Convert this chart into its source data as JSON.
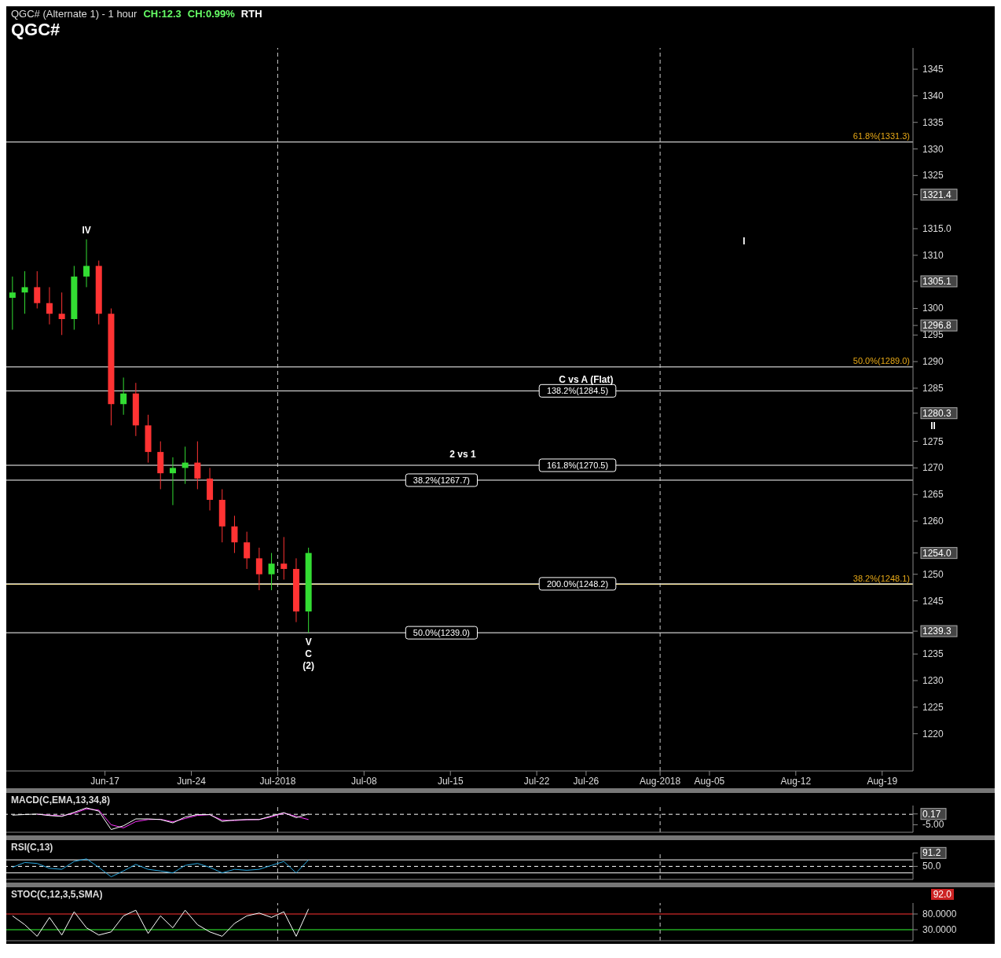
{
  "chart_data": [
    {
      "type": "candlestick",
      "title": "QGC#",
      "subtitle": "QGC# (Alternate 1) - 1 hour",
      "annotations": [
        "CH:12.3",
        "CH:0.99%",
        "RTH",
        "I",
        "II",
        {
          "text": "IV",
          "x": "2018-06-15T12:00",
          "y": 1313
        },
        {
          "text": "V",
          "x": "2018-07-03T12:00",
          "y": 1239
        },
        {
          "text": "C",
          "x": "2018-07-03T12:00",
          "y": 1239
        },
        {
          "text": "(2)",
          "x": "2018-07-03T12:00",
          "y": 1239
        },
        {
          "text": "C vs A (Flat)",
          "x": "2018-07-26T00:00",
          "y": 1284.5
        },
        {
          "text": "2 vs 1",
          "x": "2018-07-16T00:00",
          "y": 1270.5
        }
      ],
      "x": [
        "2018-06-09T12:00",
        "2018-06-10T12:00",
        "2018-06-11T12:00",
        "2018-06-12T12:00",
        "2018-06-13T12:00",
        "2018-06-14T12:00",
        "2018-06-15T12:00",
        "2018-06-16T12:00",
        "2018-06-17T12:00",
        "2018-06-18T12:00",
        "2018-06-19T12:00",
        "2018-06-20T12:00",
        "2018-06-21T12:00",
        "2018-06-22T12:00",
        "2018-06-23T12:00",
        "2018-06-24T12:00",
        "2018-06-25T12:00",
        "2018-06-26T12:00",
        "2018-06-27T12:00",
        "2018-06-28T12:00",
        "2018-06-29T12:00",
        "2018-06-30T12:00",
        "2018-07-01T12:00",
        "2018-07-02T12:00",
        "2018-07-03T12:00"
      ],
      "ohlc": [
        [
          1302,
          1306,
          1296,
          1303
        ],
        [
          1303,
          1307,
          1299,
          1304
        ],
        [
          1304,
          1307,
          1300,
          1301
        ],
        [
          1301,
          1304,
          1297,
          1299
        ],
        [
          1299,
          1303,
          1295,
          1298
        ],
        [
          1298,
          1308,
          1296,
          1306
        ],
        [
          1306,
          1313,
          1304,
          1308
        ],
        [
          1308,
          1309,
          1297,
          1299
        ],
        [
          1299,
          1300,
          1278,
          1282
        ],
        [
          1282,
          1287,
          1280,
          1284
        ],
        [
          1284,
          1286,
          1276,
          1278
        ],
        [
          1278,
          1280,
          1271,
          1273
        ],
        [
          1273,
          1275,
          1266,
          1269
        ],
        [
          1269,
          1272,
          1263,
          1270
        ],
        [
          1270,
          1274,
          1267,
          1271
        ],
        [
          1271,
          1275,
          1266,
          1268
        ],
        [
          1268,
          1270,
          1262,
          1264
        ],
        [
          1264,
          1266,
          1256,
          1259
        ],
        [
          1259,
          1261,
          1254,
          1256
        ],
        [
          1256,
          1258,
          1251,
          1253
        ],
        [
          1253,
          1255,
          1247,
          1250
        ],
        [
          1250,
          1254,
          1247,
          1252
        ],
        [
          1252,
          1257,
          1249,
          1251
        ],
        [
          1251,
          1253,
          1241,
          1243
        ],
        [
          1243,
          1255,
          1239,
          1254
        ]
      ],
      "colors": [
        "#33dd33",
        "#33dd33",
        "#ff3333",
        "#ff3333",
        "#ff3333",
        "#33dd33",
        "#33dd33",
        "#ff3333",
        "#ff3333",
        "#33dd33",
        "#ff3333",
        "#ff3333",
        "#ff3333",
        "#33dd33",
        "#33dd33",
        "#ff3333",
        "#ff3333",
        "#ff3333",
        "#ff3333",
        "#ff3333",
        "#ff3333",
        "#33dd33",
        "#ff3333",
        "#ff3333",
        "#33dd33"
      ],
      "xlim": [
        "2018-06-09T00:00",
        "2018-08-21T12:00"
      ],
      "xticks": [
        {
          "value": "2018-06-17",
          "label": "Jun-17"
        },
        {
          "value": "2018-06-24",
          "label": "Jun-24"
        },
        {
          "value": "2018-07-01",
          "label": "Jul-2018"
        },
        {
          "value": "2018-07-08",
          "label": "Jul-08"
        },
        {
          "value": "2018-07-15",
          "label": "Jul-15"
        },
        {
          "value": "2018-07-22",
          "label": "Jul-22"
        },
        {
          "value": "2018-07-26",
          "label": "Jul-26"
        },
        {
          "value": "2018-08-01",
          "label": "Aug-2018"
        },
        {
          "value": "2018-08-05",
          "label": "Aug-05"
        },
        {
          "value": "2018-08-12",
          "label": "Aug-12"
        },
        {
          "value": "2018-08-19",
          "label": "Aug-19"
        }
      ],
      "ylim": [
        1213,
        1349
      ],
      "yticks": [
        1220,
        1225,
        1230,
        1235,
        1245,
        1250,
        1260,
        1265,
        1270,
        1275,
        1285,
        1290,
        1295,
        1300,
        1310,
        1325,
        1330,
        1335,
        1340,
        1345,
        {
          "value": 1321.4,
          "label": "1321.4"
        },
        {
          "value": 1315.0,
          "label": "1315.0"
        },
        {
          "value": 1305.1,
          "label": "1305.1"
        },
        {
          "value": 1296.8,
          "label": "1296.8"
        },
        {
          "value": 1280.3,
          "label": "1280.3"
        },
        {
          "value": 1254.0,
          "label": "1254.0"
        },
        {
          "value": 1239.3,
          "label": "1239.3"
        }
      ],
      "ref_lines": [
        {
          "axis": "y",
          "value": 1331.3,
          "label": "61.8%(1331.3)",
          "color": "#ffffff"
        },
        {
          "axis": "y",
          "value": 1289.0,
          "label": "50.0%(1289.0)",
          "color": "#ffffff"
        },
        {
          "axis": "y",
          "value": 1248.1,
          "label": "38.2%(1248.1)",
          "color": "#ffe066"
        },
        {
          "axis": "y",
          "value": 1284.5,
          "label": "138.2%(1284.5)",
          "color": "#ffffff"
        },
        {
          "axis": "y",
          "value": 1270.5,
          "label": "161.8%(1270.5)",
          "color": "#ffffff"
        },
        {
          "axis": "y",
          "value": 1267.7,
          "label": "38.2%(1267.7)",
          "color": "#ffffff"
        },
        {
          "axis": "y",
          "value": 1248.2,
          "label": "200.0%(1248.2)",
          "color": "#ffffff"
        },
        {
          "axis": "y",
          "value": 1239.0,
          "label": "50.0%(1239.0)",
          "color": "#ffffff"
        },
        {
          "axis": "x",
          "value": "2018-07-01",
          "color": "#cccccc",
          "line_style": "dashed"
        },
        {
          "axis": "x",
          "value": "2018-08-01",
          "color": "#cccccc",
          "line_style": "dashed"
        }
      ],
      "grid": false,
      "legend": false
    },
    {
      "type": "line",
      "title": "MACD(C,EMA,13,34,8)",
      "tick_labels": "y",
      "legend": false,
      "grid": false,
      "x": [
        "2018-06-09T12:00",
        "2018-06-10T12:00",
        "2018-06-11T12:00",
        "2018-06-12T12:00",
        "2018-06-13T12:00",
        "2018-06-14T12:00",
        "2018-06-15T12:00",
        "2018-06-16T12:00",
        "2018-06-17T12:00",
        "2018-06-18T12:00",
        "2018-06-19T12:00",
        "2018-06-20T12:00",
        "2018-06-21T12:00",
        "2018-06-22T12:00",
        "2018-06-23T12:00",
        "2018-06-24T12:00",
        "2018-06-25T12:00",
        "2018-06-26T12:00",
        "2018-06-27T12:00",
        "2018-06-28T12:00",
        "2018-06-29T12:00",
        "2018-06-30T12:00",
        "2018-07-01T12:00",
        "2018-07-02T12:00",
        "2018-07-03T12:00"
      ],
      "series": [
        {
          "color": "#ffffff",
          "values": [
            -0.4,
            -0.1,
            0.1,
            -0.6,
            -1.0,
            1.0,
            3.1,
            1.5,
            -7.3,
            -5.5,
            -2.2,
            -2.2,
            -2.5,
            -4.1,
            -1.3,
            -0.1,
            -0.1,
            -3.4,
            -2.7,
            -2.5,
            -2.5,
            -0.8,
            0.8,
            -1.6,
            0.2
          ]
        },
        {
          "color": "#ff33ff",
          "values": [
            null,
            null,
            0.0,
            -0.4,
            -0.8,
            0.5,
            2.6,
            2.0,
            -5.0,
            -6.5,
            -3.5,
            -2.5,
            -2.4,
            -3.6,
            -2.0,
            -0.5,
            -0.2,
            -2.8,
            -3.0,
            -2.6,
            -2.5,
            -1.2,
            0.6,
            -1.0,
            -2.5
          ]
        }
      ],
      "xlim": [
        "2018-06-09T00:00",
        "2018-08-21T12:00"
      ],
      "ylim": [
        -8.6,
        4.2
      ],
      "yticks": [
        {
          "value": 0.17,
          "label": "0.17"
        },
        {
          "value": -5,
          "label": "-5.00"
        }
      ],
      "ref_lines": [
        {
          "axis": "y",
          "value": 0,
          "color": "#ffffff",
          "line_style": "dashed"
        },
        {
          "axis": "x",
          "value": "2018-07-01",
          "color": "#cccccc",
          "line_style": "dashed"
        },
        {
          "axis": "x",
          "value": "2018-08-01",
          "color": "#cccccc",
          "line_style": "dashed"
        }
      ]
    },
    {
      "type": "line",
      "title": "RSI(C,13)",
      "tick_labels": "y",
      "legend": false,
      "grid": false,
      "x": [
        "2018-06-09T12:00",
        "2018-06-10T12:00",
        "2018-06-11T12:00",
        "2018-06-12T12:00",
        "2018-06-13T12:00",
        "2018-06-14T12:00",
        "2018-06-15T12:00",
        "2018-06-16T12:00",
        "2018-06-17T12:00",
        "2018-06-18T12:00",
        "2018-06-19T12:00",
        "2018-06-20T12:00",
        "2018-06-21T12:00",
        "2018-06-22T12:00",
        "2018-06-23T12:00",
        "2018-06-24T12:00",
        "2018-06-25T12:00",
        "2018-06-26T12:00",
        "2018-06-27T12:00",
        "2018-06-28T12:00",
        "2018-06-29T12:00",
        "2018-06-30T12:00",
        "2018-07-01T12:00",
        "2018-07-02T12:00",
        "2018-07-03T12:00"
      ],
      "series": [
        {
          "color": "#29a8e0",
          "values": [
            47,
            62,
            59,
            44,
            41,
            65,
            73,
            47,
            18,
            36,
            56,
            41,
            36,
            30,
            53,
            59,
            47,
            30,
            41,
            38,
            41,
            53,
            65,
            30,
            70
          ]
        }
      ],
      "xlim": [
        "2018-06-09T00:00",
        "2018-08-21T12:00"
      ],
      "ylim": [
        10,
        92
      ],
      "yticks": [
        {
          "value": 91.2,
          "label": "91.2"
        },
        {
          "value": 50,
          "label": "50.0"
        }
      ],
      "ref_lines": [
        {
          "axis": "y",
          "value": 70,
          "color": "#ffffff"
        },
        {
          "axis": "y",
          "value": 50,
          "color": "#ffffff",
          "line_style": "dashed"
        },
        {
          "axis": "y",
          "value": 30,
          "color": "#ffffff"
        },
        {
          "axis": "x",
          "value": "2018-07-01",
          "color": "#cccccc",
          "line_style": "dashed"
        },
        {
          "axis": "x",
          "value": "2018-08-01",
          "color": "#cccccc",
          "line_style": "dashed"
        }
      ]
    },
    {
      "type": "line",
      "title": "STOC(C,12,3,5,SMA)",
      "tick_labels": "y",
      "legend": false,
      "grid": false,
      "annotations": [
        "92.0"
      ],
      "x": [
        "2018-06-09T12:00",
        "2018-06-10T12:00",
        "2018-06-11T12:00",
        "2018-06-12T12:00",
        "2018-06-13T12:00",
        "2018-06-14T12:00",
        "2018-06-15T12:00",
        "2018-06-16T12:00",
        "2018-06-17T12:00",
        "2018-06-18T12:00",
        "2018-06-19T12:00",
        "2018-06-20T12:00",
        "2018-06-21T12:00",
        "2018-06-22T12:00",
        "2018-06-23T12:00",
        "2018-06-24T12:00",
        "2018-06-25T12:00",
        "2018-06-26T12:00",
        "2018-06-27T12:00",
        "2018-06-28T12:00",
        "2018-06-29T12:00",
        "2018-06-30T12:00",
        "2018-07-01T12:00",
        "2018-07-02T12:00",
        "2018-07-03T12:00"
      ],
      "series": [
        {
          "color": "#ffffff",
          "values": [
            74,
            46,
            9,
            69,
            13,
            87,
            36,
            13,
            23,
            74,
            92,
            18,
            74,
            36,
            92,
            46,
            23,
            9,
            50,
            74,
            83,
            69,
            87,
            9,
            96
          ]
        }
      ],
      "xlim": [
        "2018-06-09T00:00",
        "2018-08-21T12:00"
      ],
      "ylim": [
        -5,
        115
      ],
      "yticks": [
        {
          "value": 80,
          "label": "80.0000"
        },
        {
          "value": 30,
          "label": "30.0000"
        }
      ],
      "ref_lines": [
        {
          "axis": "y",
          "value": 80,
          "color": "#ff3333"
        },
        {
          "axis": "y",
          "value": 30,
          "color": "#33ff33"
        },
        {
          "axis": "x",
          "value": "2018-07-01",
          "color": "#cccccc",
          "line_style": "dashed"
        },
        {
          "axis": "x",
          "value": "2018-08-01",
          "color": "#cccccc",
          "line_style": "dashed"
        }
      ]
    }
  ]
}
